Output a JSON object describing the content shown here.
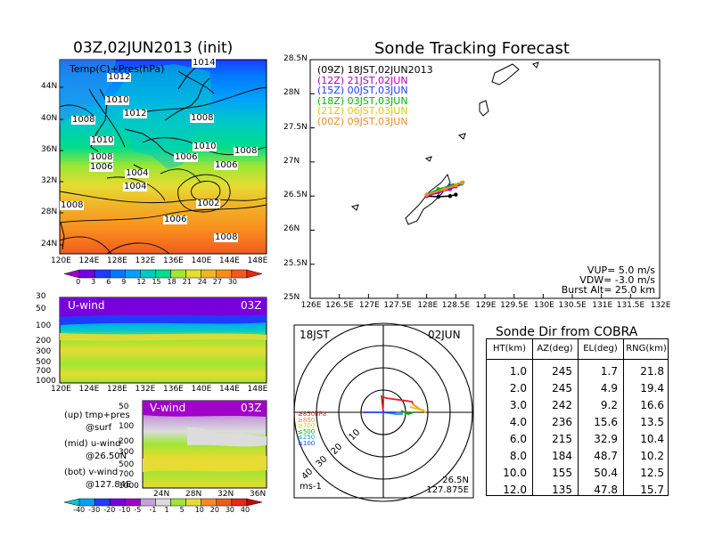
{
  "left": {
    "main_title": "03Z,02JUN2013 (init)",
    "panel_label": "Temp(C)+Pres(hPa)",
    "lat_ticks": [
      "44N",
      "40N",
      "36N",
      "32N",
      "28N",
      "24N"
    ],
    "lon_ticks": [
      "120E",
      "124E",
      "128E",
      "132E",
      "136E",
      "140E",
      "144E",
      "148E"
    ],
    "pressure_labels": [
      "1014",
      "1012",
      "1010",
      "1012",
      "1008",
      "1008",
      "1010",
      "1010",
      "1008",
      "1006",
      "1006",
      "1008",
      "1004",
      "1006",
      "1004",
      "1002",
      "1006",
      "1008",
      "1008"
    ],
    "temp_colorbar": {
      "labels": [
        "0",
        "3",
        "6",
        "9",
        "12",
        "15",
        "18",
        "21",
        "24",
        "27",
        "30"
      ],
      "colors": [
        "#a000c8",
        "#7800dc",
        "#1e3cff",
        "#0078ff",
        "#00a0ff",
        "#00c8c8",
        "#00dc8c",
        "#a0e632",
        "#e6dc32",
        "#f0b428",
        "#fa8c1e",
        "#f05a1e",
        "#e62814"
      ]
    },
    "uwind": {
      "label": "U-wind",
      "time": "03Z",
      "p_ticks": [
        "30",
        "50",
        "100",
        "200",
        "300",
        "500",
        "700",
        "1000"
      ],
      "lon_ticks": [
        "120E",
        "124E",
        "128E",
        "132E",
        "136E",
        "140E",
        "144E",
        "148E"
      ]
    },
    "vwind": {
      "label": "V-wind",
      "time": "03Z",
      "p_ticks": [
        "50",
        "100",
        "200",
        "300",
        "500",
        "700",
        "1000"
      ],
      "lat_ticks": [
        "24N",
        "28N",
        "32N",
        "36N"
      ]
    },
    "legend_notes": [
      "(up) tmp+pres",
      "@surf",
      "(mid) u-wind",
      "@26.50N",
      "(bot) v-wind",
      "@127.84E"
    ],
    "wind_colorbar": {
      "labels": [
        "-40",
        "-30",
        "-20",
        "-10",
        "-5",
        "-1",
        "1",
        "5",
        "10",
        "20",
        "30",
        "40"
      ],
      "colors": [
        "#00c8c8",
        "#00a0ff",
        "#1e3cff",
        "#7800dc",
        "#a000c8",
        "#c8a0dc",
        "#dcdcdc",
        "#a0e632",
        "#e6dc32",
        "#fa8c1e",
        "#f05a1e",
        "#e62814",
        "#c80000"
      ]
    }
  },
  "track": {
    "title": "Sonde Tracking Forecast",
    "lat_ticks": [
      "28.5N",
      "28N",
      "27.5N",
      "27N",
      "26.5N",
      "26N",
      "25.5N",
      "25N"
    ],
    "lon_ticks": [
      "126E",
      "126.5E",
      "127E",
      "127.5E",
      "128E",
      "128.5E",
      "129E",
      "129.5E",
      "130E",
      "130.5E",
      "131E",
      "131.5E",
      "132E"
    ],
    "legend": [
      {
        "text": "(09Z)  18JST,02JUN2013",
        "color": "#000000"
      },
      {
        "text": "(12Z)  21JST,02JUN",
        "color": "#b400b4"
      },
      {
        "text": "(15Z)  00JST,03JUN",
        "color": "#1e3cff"
      },
      {
        "text": "(18Z)  03JST,03JUN",
        "color": "#00b400"
      },
      {
        "text": "(21Z)  06JST,03JUN",
        "color": "#e6c800"
      },
      {
        "text": "(00Z)  09JST,03JUN",
        "color": "#f08c28"
      }
    ],
    "params": [
      "VUP=  5.0  m/s",
      "VDW=  -3.0  m/s",
      "Burst Alt=  25.0  km"
    ],
    "chart_data": {
      "type": "line",
      "xlabel": "",
      "ylabel": "",
      "xlim": [
        126,
        132
      ],
      "ylim": [
        25,
        28.5
      ],
      "series": [
        {
          "name": "(09Z)  18JST,02JUN2013",
          "color": "#000000",
          "points": [
            [
              128.0,
              26.5
            ],
            [
              128.2,
              26.49
            ],
            [
              128.4,
              26.5
            ],
            [
              128.5,
              26.52
            ]
          ]
        },
        {
          "name": "(12Z)  21JST,02JUN",
          "color": "#b400b4",
          "points": [
            [
              128.0,
              26.5
            ],
            [
              128.2,
              26.55
            ],
            [
              128.4,
              26.6
            ],
            [
              128.5,
              26.64
            ]
          ]
        },
        {
          "name": "(15Z)  00JST,03JUN",
          "color": "#1e3cff",
          "points": [
            [
              128.0,
              26.52
            ],
            [
              128.2,
              26.6
            ],
            [
              128.4,
              26.65
            ],
            [
              128.55,
              26.67
            ]
          ]
        },
        {
          "name": "(18Z)  03JST,03JUN",
          "color": "#00b400",
          "points": [
            [
              128.0,
              26.52
            ],
            [
              128.2,
              26.6
            ],
            [
              128.45,
              26.66
            ],
            [
              128.6,
              26.68
            ]
          ]
        },
        {
          "name": "(21Z)  06JST,03JUN",
          "color": "#e6c800",
          "points": [
            [
              128.0,
              26.52
            ],
            [
              128.3,
              26.6
            ],
            [
              128.5,
              26.66
            ],
            [
              128.6,
              26.7
            ]
          ]
        },
        {
          "name": "(00Z)  09JST,03JUN",
          "color": "#f08c28",
          "points": [
            [
              128.0,
              26.52
            ],
            [
              128.3,
              26.6
            ],
            [
              128.5,
              26.66
            ],
            [
              128.62,
              26.7
            ]
          ]
        }
      ]
    }
  },
  "polar": {
    "time_left": "18JST",
    "date_right": "02JUN",
    "ring_labels": [
      "10",
      "20",
      "30",
      "40"
    ],
    "levels": [
      {
        "text": "≥850hPa",
        "color": "#e61e1e"
      },
      {
        "text": "≥850",
        "color": "#f08c28"
      },
      {
        "text": "≥700",
        "color": "#e6c800"
      },
      {
        "text": "≤500",
        "color": "#00b400"
      },
      {
        "text": "≤250",
        "color": "#00a0ff"
      },
      {
        "text": "≤100",
        "color": "#1e3cff"
      }
    ],
    "unit": "ms-1",
    "lat": "26.5N",
    "lon": "127.875E"
  },
  "sonde_table": {
    "title": "Sonde Dir from COBRA",
    "headers": [
      "HT(km)",
      "AZ(deg)",
      "EL(deg)",
      "RNG(km)"
    ],
    "rows": [
      [
        "1.0",
        "245",
        "1.7",
        "21.8"
      ],
      [
        "2.0",
        "245",
        "4.9",
        "19.4"
      ],
      [
        "3.0",
        "242",
        "9.2",
        "16.6"
      ],
      [
        "4.0",
        "236",
        "15.6",
        "13.5"
      ],
      [
        "6.0",
        "215",
        "32.9",
        "10.4"
      ],
      [
        "8.0",
        "184",
        "48.7",
        "10.2"
      ],
      [
        "10.0",
        "155",
        "50.4",
        "12.5"
      ],
      [
        "12.0",
        "135",
        "47.8",
        "15.7"
      ]
    ]
  }
}
